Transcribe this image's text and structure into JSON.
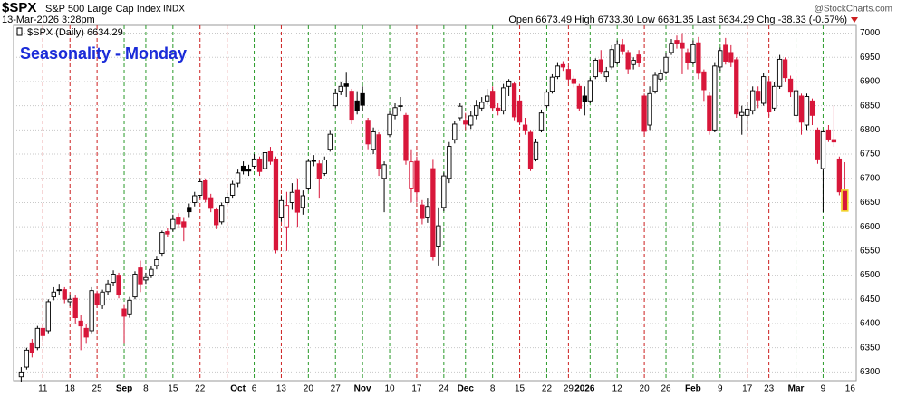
{
  "chart_data": {
    "type": "candlestick",
    "header": {
      "symbol": "$SPX",
      "name": "S&P 500 Large Cap Index",
      "exchange": "INDX",
      "timestamp": "13-Mar-2026 3:28pm",
      "quote": "Open 6673.49  High 6733.30  Low 6631.35  Last 6634.29  Chg -38.33 (-0.57%)",
      "watermark": "@StockCharts.com"
    },
    "legend": "$SPX (Daily) 6634.29",
    "title": "Seasonality - Monday",
    "categories": [
      null,
      null,
      null,
      null,
      "11",
      null,
      null,
      null,
      null,
      "18",
      null,
      null,
      null,
      null,
      "25",
      null,
      null,
      null,
      null,
      "Sep",
      null,
      null,
      null,
      "8",
      null,
      null,
      null,
      null,
      "15",
      null,
      null,
      null,
      null,
      "22",
      null,
      null,
      null,
      null,
      null,
      null,
      "Oct",
      null,
      null,
      "6",
      null,
      null,
      null,
      null,
      "13",
      null,
      null,
      null,
      null,
      "20",
      null,
      null,
      null,
      null,
      "27",
      null,
      null,
      null,
      null,
      "Nov",
      null,
      null,
      null,
      null,
      "10",
      null,
      null,
      null,
      null,
      "17",
      null,
      null,
      null,
      null,
      "24",
      null,
      null,
      null,
      "Dec",
      null,
      null,
      null,
      null,
      "8",
      null,
      null,
      null,
      null,
      "15",
      null,
      null,
      null,
      null,
      "22",
      null,
      null,
      null,
      "29",
      null,
      null,
      "2026",
      null,
      null,
      null,
      null,
      null,
      "12",
      null,
      null,
      null,
      null,
      "20",
      null,
      null,
      null,
      "26",
      null,
      null,
      null,
      null,
      "Feb",
      null,
      null,
      null,
      null,
      "9",
      null,
      null,
      null,
      null,
      "17",
      null,
      null,
      null,
      "23",
      null,
      null,
      null,
      null,
      "Mar",
      null,
      null,
      null,
      null,
      "9",
      null,
      null,
      null,
      null,
      "16"
    ],
    "open": [
      6290,
      6310,
      6360,
      6350,
      6390,
      6385,
      6455,
      6470,
      6470,
      6445,
      6452,
      6405,
      6390,
      6385,
      6462,
      6438,
      6466,
      6485,
      6500,
      6430,
      6420,
      6455,
      6515,
      6490,
      6500,
      6520,
      6545,
      6590,
      6595,
      6620,
      6610,
      6640,
      6650,
      6665,
      6695,
      6660,
      6635,
      6610,
      6650,
      6665,
      6690,
      6725,
      6718,
      6725,
      6740,
      6720,
      6755,
      6740,
      6620,
      6600,
      6650,
      6675,
      6640,
      6680,
      6738,
      6730,
      6710,
      6760,
      6850,
      6880,
      6895,
      6880,
      6860,
      6875,
      6820,
      6760,
      6790,
      6700,
      6790,
      6830,
      6850,
      6830,
      6680,
      6735,
      6645,
      6620,
      6720,
      6560,
      6640,
      6700,
      6780,
      6825,
      6820,
      6810,
      6830,
      6845,
      6860,
      6880,
      6845,
      6840,
      6890,
      6895,
      6860,
      6810,
      6795,
      6740,
      6800,
      6850,
      6880,
      6910,
      6935,
      6925,
      6905,
      6890,
      6870,
      6860,
      6910,
      6945,
      6910,
      6930,
      6940,
      6975,
      6960,
      6935,
      6955,
      6870,
      6810,
      6880,
      6905,
      6920,
      6960,
      6985,
      6980,
      6960,
      6940,
      6980,
      6920,
      6870,
      6800,
      6930,
      6975,
      6960,
      6945,
      6830,
      6830,
      6840,
      6880,
      6855,
      6900,
      6845,
      6890,
      6945,
      6905,
      6830,
      6870,
      6810,
      6860,
      6800,
      6720,
      6800,
      6780,
      6740,
      6673.49,
      null
    ],
    "high": [
      6310,
      6350,
      6368,
      6395,
      6398,
      6450,
      6475,
      6482,
      6475,
      6460,
      6458,
      6418,
      6400,
      6475,
      6468,
      6470,
      6490,
      6510,
      6505,
      6440,
      6455,
      6508,
      6530,
      6505,
      6518,
      6540,
      6592,
      6598,
      6625,
      6628,
      6620,
      6648,
      6672,
      6700,
      6700,
      6668,
      6640,
      6650,
      6670,
      6695,
      6718,
      6735,
      6728,
      6750,
      6745,
      6760,
      6765,
      6745,
      6665,
      6672,
      6690,
      6700,
      6675,
      6740,
      6748,
      6738,
      6745,
      6800,
      6885,
      6900,
      6920,
      6885,
      6880,
      6890,
      6825,
      6805,
      6795,
      6735,
      6840,
      6855,
      6868,
      6835,
      6760,
      6745,
      6655,
      6660,
      6740,
      6640,
      6712,
      6775,
      6818,
      6855,
      6835,
      6840,
      6862,
      6868,
      6885,
      6890,
      6855,
      6895,
      6905,
      6900,
      6870,
      6825,
      6800,
      6782,
      6842,
      6882,
      6915,
      6940,
      6942,
      6932,
      6912,
      6895,
      6890,
      6908,
      6948,
      6965,
      6930,
      6975,
      6985,
      6988,
      6965,
      6950,
      6965,
      6875,
      6890,
      6920,
      6925,
      6958,
      6988,
      6995,
      7000,
      6968,
      6985,
      6992,
      6925,
      6878,
      6940,
      6970,
      6990,
      6975,
      6950,
      6850,
      6858,
      6890,
      6890,
      6918,
      6905,
      6898,
      6955,
      6950,
      6912,
      6890,
      6875,
      6875,
      6865,
      6805,
      6800,
      6810,
      6850,
      6745,
      6733.3,
      null
    ],
    "low": [
      6280,
      6305,
      6330,
      6345,
      6362,
      6380,
      6448,
      6458,
      6442,
      6436,
      6400,
      6345,
      6360,
      6380,
      6432,
      6430,
      6458,
      6478,
      6452,
      6360,
      6412,
      6450,
      6465,
      6482,
      6494,
      6512,
      6540,
      6578,
      6590,
      6598,
      6570,
      6620,
      6642,
      6660,
      6650,
      6630,
      6595,
      6605,
      6645,
      6660,
      6682,
      6708,
      6705,
      6720,
      6705,
      6715,
      6728,
      6545,
      6610,
      6550,
      6635,
      6600,
      6625,
      6675,
      6725,
      6660,
      6705,
      6755,
      6845,
      6872,
      6868,
      6812,
      6832,
      6840,
      6760,
      6750,
      6705,
      6630,
      6785,
      6822,
      6838,
      6728,
      6650,
      6650,
      6605,
      6608,
      6530,
      6520,
      6632,
      6690,
      6772,
      6820,
      6800,
      6802,
      6822,
      6838,
      6852,
      6838,
      6830,
      6832,
      6870,
      6820,
      6810,
      6790,
      6715,
      6735,
      6795,
      6845,
      6875,
      6905,
      6922,
      6898,
      6888,
      6840,
      6830,
      6855,
      6905,
      6915,
      6900,
      6925,
      6935,
      6955,
      6915,
      6925,
      6930,
      6790,
      6800,
      6875,
      6898,
      6915,
      6955,
      6968,
      6915,
      6925,
      6935,
      6905,
      6860,
      6790,
      6795,
      6922,
      6935,
      6930,
      6825,
      6790,
      6800,
      6832,
      6845,
      6850,
      6828,
      6840,
      6885,
      6900,
      6868,
      6815,
      6790,
      6800,
      6810,
      6730,
      6630,
      6775,
      6765,
      6665,
      6631.35,
      null
    ],
    "close": [
      6300,
      6345,
      6340,
      6390,
      6375,
      6445,
      6465,
      6468,
      6450,
      6450,
      6412,
      6395,
      6372,
      6468,
      6440,
      6465,
      6482,
      6502,
      6460,
      6415,
      6448,
      6502,
      6482,
      6495,
      6512,
      6532,
      6588,
      6585,
      6615,
      6606,
      6600,
      6631,
      6664,
      6693,
      6656,
      6638,
      6604,
      6644,
      6661,
      6688,
      6711,
      6715,
      6715,
      6740,
      6714,
      6753,
      6735,
      6552,
      6654,
      6644,
      6671,
      6630,
      6664,
      6735,
      6735,
      6699,
      6738,
      6791,
      6875,
      6890,
      6890,
      6822,
      6840,
      6851,
      6771,
      6796,
      6720,
      6728,
      6832,
      6846,
      6850,
      6737,
      6734,
      6672,
      6617,
      6642,
      6538,
      6602,
      6705,
      6766,
      6812,
      6849,
      6812,
      6829,
      6850,
      6857,
      6870,
      6846,
      6840,
      6887,
      6901,
      6827,
      6816,
      6800,
      6721,
      6774,
      6835,
      6878,
      6909,
      6932,
      6930,
      6905,
      6896,
      6845,
      6858,
      6902,
      6944,
      6921,
      6921,
      6966,
      6977,
      6963,
      6926,
      6944,
      6940,
      6797,
      6875,
      6913,
      6916,
      6950,
      6979,
      6978,
      6969,
      6939,
      6976,
      6917,
      6883,
      6798,
      6932,
      6964,
      6942,
      6941,
      6833,
      6836,
      6843,
      6881,
      6862,
      6910,
      6837,
      6890,
      6946,
      6908,
      6878,
      6881,
      6816,
      6869,
      6830,
      6740,
      6796,
      6781,
      6775,
      6672,
      6634.29,
      null
    ],
    "up_color": "#000000",
    "down_color": "#d8173a",
    "highlight_color": "#f2d32a",
    "weekly_lines": [
      {
        "index": 4,
        "color": "#cc1f1f"
      },
      {
        "index": 9,
        "color": "#cc1f1f"
      },
      {
        "index": 14,
        "color": "#cc1f1f"
      },
      {
        "index": 19,
        "color": "#2b9a2b"
      },
      {
        "index": 23,
        "color": "#2b9a2b"
      },
      {
        "index": 28,
        "color": "#2b9a2b"
      },
      {
        "index": 33,
        "color": "#cc1f1f"
      },
      {
        "index": 38,
        "color": "#cc1f1f"
      },
      {
        "index": 43,
        "color": "#2b9a2b"
      },
      {
        "index": 48,
        "color": "#cc1f1f"
      },
      {
        "index": 53,
        "color": "#2b9a2b"
      },
      {
        "index": 58,
        "color": "#2b9a2b"
      },
      {
        "index": 63,
        "color": "#2b9a2b"
      },
      {
        "index": 68,
        "color": "#2b9a2b"
      },
      {
        "index": 73,
        "color": "#cc1f1f"
      },
      {
        "index": 78,
        "color": "#2b9a2b"
      },
      {
        "index": 82,
        "color": "#2b9a2b"
      },
      {
        "index": 87,
        "color": "#2b9a2b"
      },
      {
        "index": 92,
        "color": "#cc1f1f"
      },
      {
        "index": 97,
        "color": "#2b9a2b"
      },
      {
        "index": 101,
        "color": "#cc1f1f"
      },
      {
        "index": 105,
        "color": "#2b9a2b"
      },
      {
        "index": 110,
        "color": "#2b9a2b"
      },
      {
        "index": 115,
        "color": "#cc1f1f"
      },
      {
        "index": 119,
        "color": "#2b9a2b"
      },
      {
        "index": 124,
        "color": "#2b9a2b"
      },
      {
        "index": 129,
        "color": "#2b9a2b"
      },
      {
        "index": 134,
        "color": "#cc1f1f"
      },
      {
        "index": 138,
        "color": "#cc1f1f"
      },
      {
        "index": 143,
        "color": "#2b9a2b"
      },
      {
        "index": 148,
        "color": "#2b9a2b"
      }
    ],
    "ylim": [
      6282,
      7016
    ],
    "yticks": [
      6300,
      6350,
      6400,
      6450,
      6500,
      6550,
      6600,
      6650,
      6700,
      6750,
      6800,
      6850,
      6900,
      6950,
      7000
    ],
    "grid": true
  }
}
